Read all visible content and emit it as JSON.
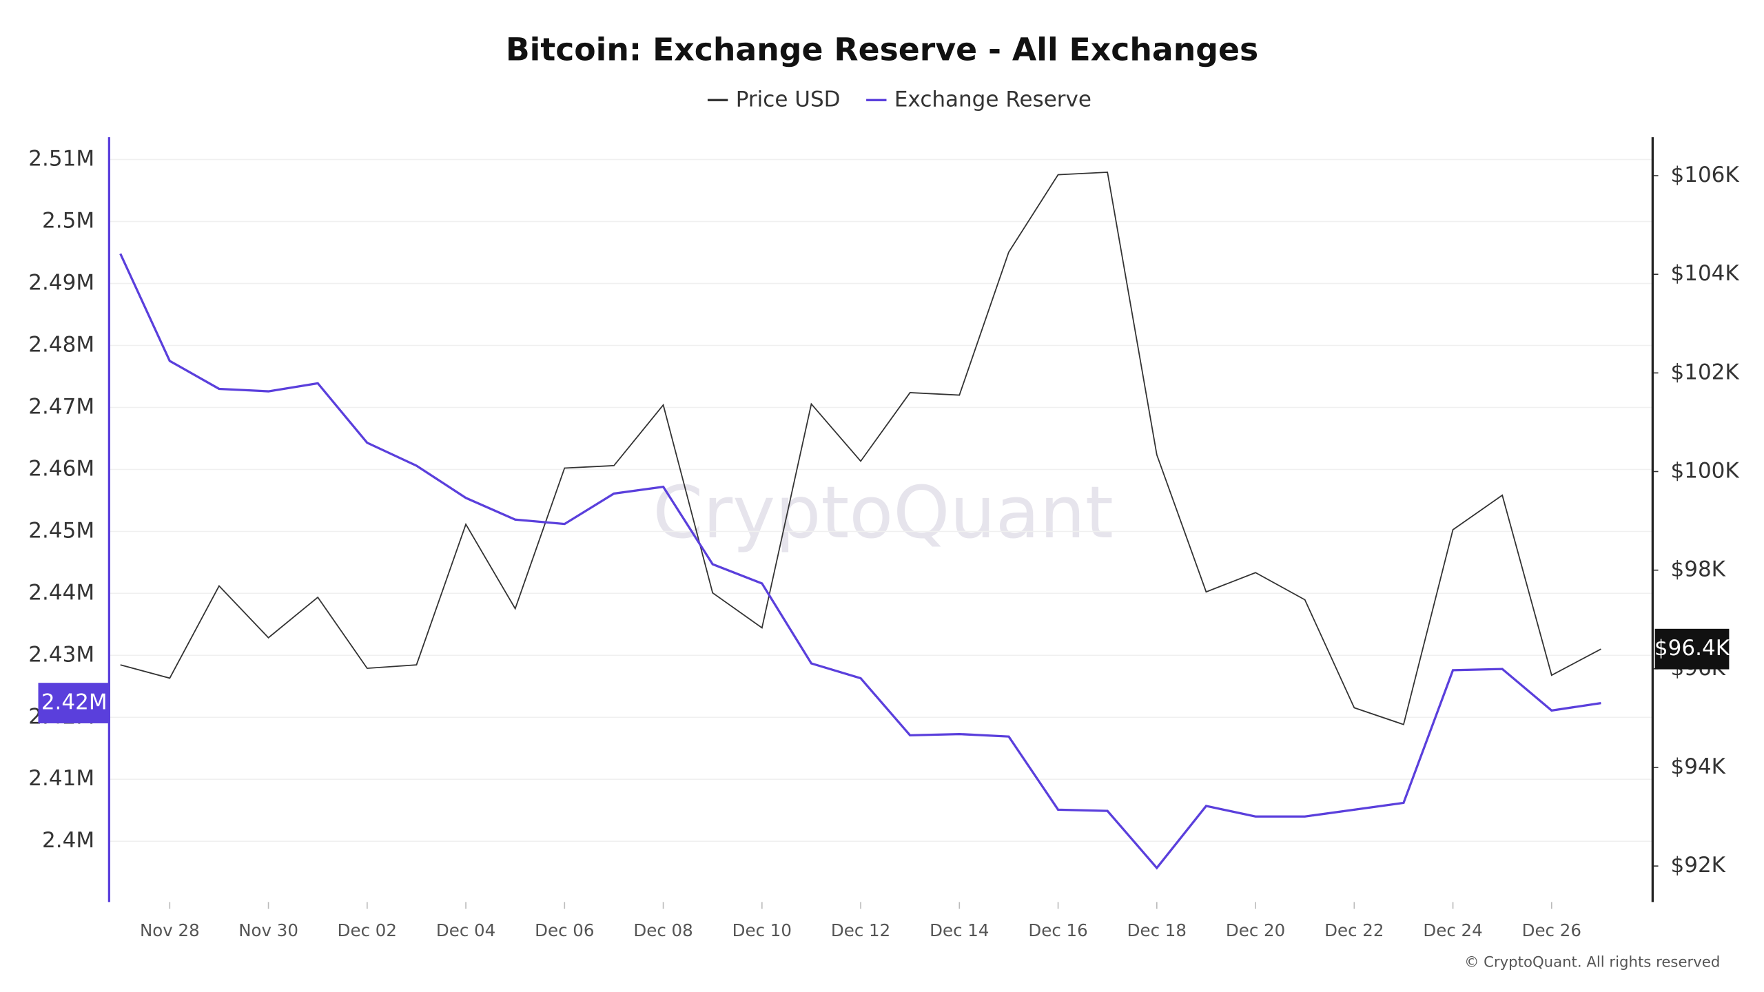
{
  "chart_data": {
    "type": "line",
    "title": "Bitcoin: Exchange Reserve - All Exchanges",
    "watermark": "CryptoQuant",
    "copyright": "© CryptoQuant. All rights reserved",
    "categories": [
      null,
      "Nov 28",
      null,
      "Nov 30",
      null,
      "Dec 02",
      null,
      "Dec 04",
      null,
      "Dec 06",
      null,
      "Dec 08",
      null,
      "Dec 10",
      null,
      "Dec 12",
      null,
      "Dec 14",
      null,
      "Dec 16",
      null,
      "Dec 18",
      null,
      "Dec 20",
      null,
      "Dec 22",
      null,
      "Dec 24",
      null,
      "Dec 26",
      null
    ],
    "series": [
      {
        "name": "Price USD",
        "color": "#333333",
        "axis": "y2",
        "current_label": "$96.4K",
        "values": [
          96.08,
          95.81,
          97.68,
          96.63,
          97.45,
          96.01,
          96.08,
          98.93,
          97.22,
          100.07,
          100.12,
          101.35,
          97.54,
          96.83,
          101.37,
          100.21,
          101.6,
          101.55,
          104.45,
          106.02,
          106.07,
          100.34,
          97.56,
          97.95,
          97.4,
          95.21,
          94.87,
          98.82,
          99.52,
          95.87,
          96.4
        ]
      },
      {
        "name": "Exchange Reserve",
        "color": "#5a3fdc",
        "current_label": "2.42M",
        "values": [
          2.4948,
          2.4775,
          2.473,
          2.4726,
          2.4739,
          2.4643,
          2.4606,
          2.4554,
          2.4519,
          2.4512,
          2.4561,
          2.4572,
          2.4447,
          2.4416,
          2.4287,
          2.4263,
          2.4171,
          2.4173,
          2.4169,
          2.4051,
          2.4049,
          2.3957,
          2.4057,
          2.404,
          2.404,
          2.4051,
          2.4062,
          2.4276,
          2.4278,
          2.4211,
          2.4223
        ]
      }
    ],
    "ylim": [
      2.3902,
      2.5136
    ],
    "yticks": [
      {
        "value": 2.4,
        "label": "2.4M"
      },
      {
        "value": 2.41,
        "label": "2.41M"
      },
      {
        "value": 2.42,
        "label": "2.42M"
      },
      {
        "value": 2.43,
        "label": "2.43M"
      },
      {
        "value": 2.44,
        "label": "2.44M"
      },
      {
        "value": 2.45,
        "label": "2.45M"
      },
      {
        "value": 2.46,
        "label": "2.46M"
      },
      {
        "value": 2.47,
        "label": "2.47M"
      },
      {
        "value": 2.48,
        "label": "2.48M"
      },
      {
        "value": 2.49,
        "label": "2.49M"
      },
      {
        "value": 2.5,
        "label": "2.5M"
      },
      {
        "value": 2.51,
        "label": "2.51M"
      }
    ],
    "y2lim": [
      91.27,
      106.78
    ],
    "y2ticks": [
      {
        "value": 92,
        "label": "$92K"
      },
      {
        "value": 94,
        "label": "$94K"
      },
      {
        "value": 96,
        "label": "$96K"
      },
      {
        "value": 98,
        "label": "$98K"
      },
      {
        "value": 100,
        "label": "$100K"
      },
      {
        "value": 102,
        "label": "$102K"
      },
      {
        "value": 104,
        "label": "$104K"
      },
      {
        "value": 106,
        "label": "$106K"
      }
    ],
    "grid": true,
    "legend": "top"
  }
}
